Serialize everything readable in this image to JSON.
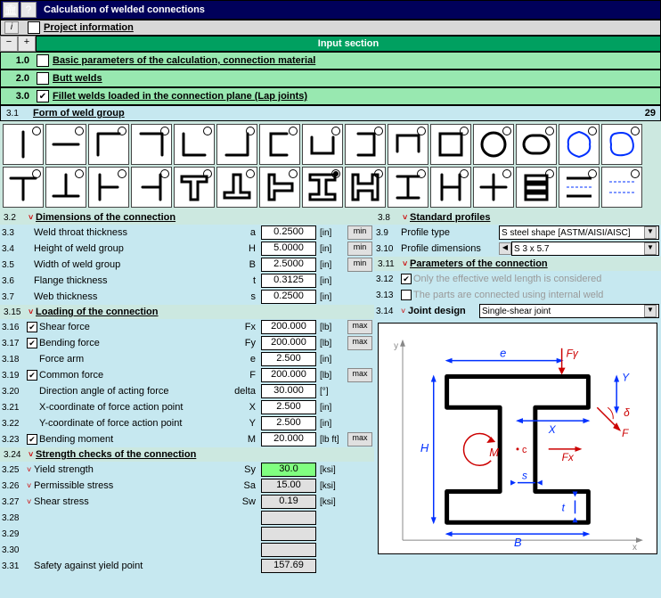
{
  "title": "Calculation of welded connections",
  "project_info_label": "Project information",
  "input_section_label": "Input section",
  "sections": {
    "s1": {
      "num": "1.0",
      "label": "Basic parameters of the calculation, connection material",
      "checked": false
    },
    "s2": {
      "num": "2.0",
      "label": "Butt welds",
      "checked": false
    },
    "s3": {
      "num": "3.0",
      "label": "Fillet welds loaded in the connection plane (Lap joints)",
      "checked": true
    }
  },
  "form_header": {
    "num": "3.1",
    "label": "Form of weld group",
    "count": "29"
  },
  "weld_shapes_row1": [
    "line",
    "hline",
    "corner-tl",
    "corner-tr",
    "corner-bl",
    "corner-br",
    "u-left",
    "u-up",
    "u-right",
    "u-down",
    "rect",
    "circle",
    "oval",
    "flower-blue",
    "blob-blue"
  ],
  "weld_shapes_row2": [
    "T",
    "T-inv",
    "I-rot",
    "H",
    "T-box",
    "T-inv-box",
    "T-right",
    "I-sel",
    "H-box",
    "I-spread",
    "H-wide",
    "plus",
    "stack3",
    "bars-blue",
    "dash-blue"
  ],
  "selected_shape_index": 22,
  "dim_header": {
    "num": "3.2",
    "label": "Dimensions of the connection"
  },
  "dims": [
    {
      "num": "3.3",
      "tic": "",
      "lbl": "Weld throat thickness",
      "sym": "a",
      "val": "0.2500",
      "unit": "[in]",
      "btn": "min"
    },
    {
      "num": "3.4",
      "tic": "",
      "lbl": "Height of weld group",
      "sym": "H",
      "val": "5.0000",
      "unit": "[in]",
      "btn": "min"
    },
    {
      "num": "3.5",
      "tic": "",
      "lbl": "Width of weld group",
      "sym": "B",
      "val": "2.5000",
      "unit": "[in]",
      "btn": "min"
    },
    {
      "num": "3.6",
      "tic": "",
      "lbl": "Flange thickness",
      "sym": "t",
      "val": "0.3125",
      "unit": "[in]",
      "btn": ""
    },
    {
      "num": "3.7",
      "tic": "",
      "lbl": "Web thickness",
      "sym": "s",
      "val": "0.2500",
      "unit": "[in]",
      "btn": ""
    }
  ],
  "load_header": {
    "num": "3.15",
    "label": "Loading of the connection"
  },
  "loads": [
    {
      "num": "3.16",
      "chk": true,
      "lbl": "Shear force",
      "sym": "Fx",
      "val": "200.000",
      "unit": "[lb]",
      "btn": "max"
    },
    {
      "num": "3.17",
      "chk": true,
      "lbl": "Bending force",
      "sym": "Fy",
      "val": "200.000",
      "unit": "[lb]",
      "btn": "max"
    },
    {
      "num": "3.18",
      "chk": null,
      "lbl": "   Force arm",
      "sym": "e",
      "val": "2.500",
      "unit": "[in]",
      "btn": ""
    },
    {
      "num": "3.19",
      "chk": true,
      "lbl": "Common force",
      "sym": "F",
      "val": "200.000",
      "unit": "[lb]",
      "btn": "max"
    },
    {
      "num": "3.20",
      "chk": null,
      "lbl": "   Direction angle of acting force",
      "sym": "delta",
      "val": "30.000",
      "unit": "[°]",
      "btn": ""
    },
    {
      "num": "3.21",
      "chk": null,
      "lbl": "   X-coordinate of force action point",
      "sym": "X",
      "val": "2.500",
      "unit": "[in]",
      "btn": ""
    },
    {
      "num": "3.22",
      "chk": null,
      "lbl": "   Y-coordinate of force action point",
      "sym": "Y",
      "val": "2.500",
      "unit": "[in]",
      "btn": ""
    },
    {
      "num": "3.23",
      "chk": true,
      "lbl": "Bending moment",
      "sym": "M",
      "val": "20.000",
      "unit": "[lb ft]",
      "btn": "max"
    }
  ],
  "strength_header": {
    "num": "3.24",
    "label": "Strength checks of the connection"
  },
  "strengths": [
    {
      "num": "3.25",
      "tic": "˅",
      "lbl": "Yield strength",
      "sym": "Sy",
      "val": "30.0",
      "unit": "[ksi]",
      "cls": "green"
    },
    {
      "num": "3.26",
      "tic": "˅",
      "lbl": "Permissible stress",
      "sym": "Sa",
      "val": "15.00",
      "unit": "[ksi]",
      "cls": "gray"
    },
    {
      "num": "3.27",
      "tic": "˅",
      "lbl": "Shear stress",
      "sym": "Sw",
      "val": "0.19",
      "unit": "[ksi]",
      "cls": "gray"
    },
    {
      "num": "3.28",
      "tic": "",
      "lbl": "",
      "sym": "",
      "val": "",
      "unit": "",
      "cls": "gray"
    },
    {
      "num": "3.29",
      "tic": "",
      "lbl": "",
      "sym": "",
      "val": "",
      "unit": "",
      "cls": "gray"
    },
    {
      "num": "3.30",
      "tic": "",
      "lbl": "",
      "sym": "",
      "val": "",
      "unit": "",
      "cls": "gray"
    },
    {
      "num": "3.31",
      "tic": "",
      "lbl": "Safety against yield point",
      "sym": "",
      "val": "157.69",
      "unit": "",
      "cls": "gray"
    }
  ],
  "std_prof_header": {
    "num": "3.8",
    "label": "Standard profiles"
  },
  "profile_type": {
    "num": "3.9",
    "lbl": "Profile type",
    "val": "S steel shape  [ASTM/AISI/AISC]"
  },
  "profile_dim": {
    "num": "3.10",
    "lbl": "Profile dimensions",
    "val": "S 3 x 5.7"
  },
  "param_conn_header": {
    "num": "3.11",
    "label": "Parameters of the connection"
  },
  "pc1": {
    "num": "3.12",
    "chk": true,
    "lbl": "Only the effective weld length is considered"
  },
  "pc2": {
    "num": "3.13",
    "chk": false,
    "lbl": "The parts are connected using internal weld"
  },
  "joint": {
    "num": "3.14",
    "lbl": "Joint design",
    "val": "Single-shear joint"
  },
  "diagram": {
    "labels": {
      "H": "H",
      "B": "B",
      "e": "e",
      "Fy": "Fγ",
      "Fx": "Fx",
      "F": "F",
      "M": "M",
      "X": "X",
      "Y": "Y",
      "s": "s",
      "t": "t",
      "delta": "δ",
      "c": "c"
    },
    "colors": {
      "dim": "#0030ff",
      "force": "#cc0000",
      "outline": "#000000"
    }
  }
}
